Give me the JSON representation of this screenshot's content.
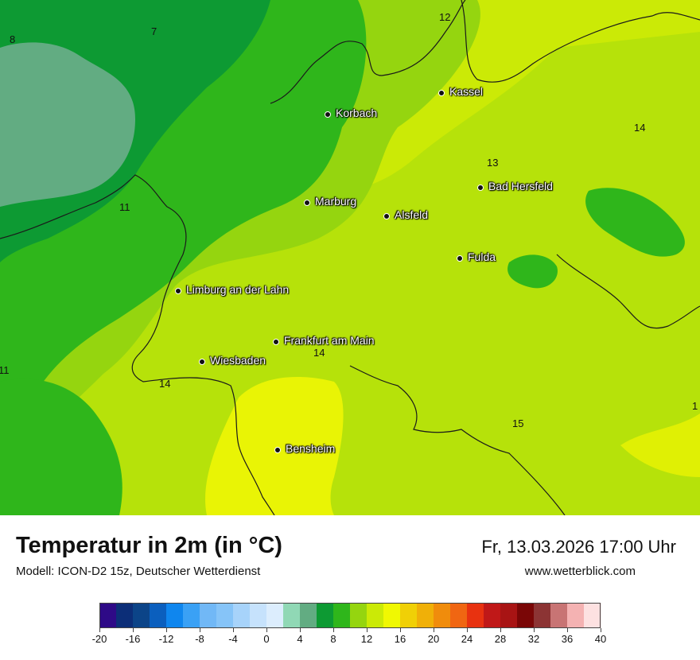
{
  "title": "Temperatur in 2m (in °C)",
  "model": "Modell: ICON-D2 15z, Deutscher Wetterdienst",
  "datetime": "Fr, 13.03.2026 17:00 Uhr",
  "website": "www.wetterblick.com",
  "cities": [
    {
      "name": "Kassel"
    },
    {
      "name": "Korbach"
    },
    {
      "name": "Bad Hersfeld"
    },
    {
      "name": "Marburg"
    },
    {
      "name": "Alsfeld"
    },
    {
      "name": "Fulda"
    },
    {
      "name": "Limburg an der Lahn"
    },
    {
      "name": "Frankfurt am Main"
    },
    {
      "name": "Wiesbaden"
    },
    {
      "name": "Bensheim"
    }
  ],
  "isotherm_labels": [
    "8",
    "7",
    "12",
    "14",
    "13",
    "11",
    "14",
    "11",
    "14",
    "15",
    "1"
  ],
  "legend": {
    "tick_labels": [
      "-20",
      "-16",
      "-12",
      "-8",
      "-4",
      "0",
      "4",
      "8",
      "12",
      "16",
      "20",
      "24",
      "28",
      "32",
      "36",
      "40"
    ],
    "colors": [
      "#2e0a87",
      "#0c2e78",
      "#0c4488",
      "#0b5fbe",
      "#0f86ee",
      "#3aa1f5",
      "#71b8f6",
      "#86c4f8",
      "#a7d3fa",
      "#c6e2fc",
      "#dcedfd",
      "#90d8b5",
      "#62ac82",
      "#0d9a33",
      "#2fb61b",
      "#95d50f",
      "#cbea06",
      "#f0f802",
      "#f0d006",
      "#f0b008",
      "#f08c0c",
      "#f06612",
      "#e83210",
      "#c01818",
      "#a81414",
      "#7a0606",
      "#8c3434",
      "#c87474",
      "#f4b2b2",
      "#fde1e1"
    ]
  }
}
